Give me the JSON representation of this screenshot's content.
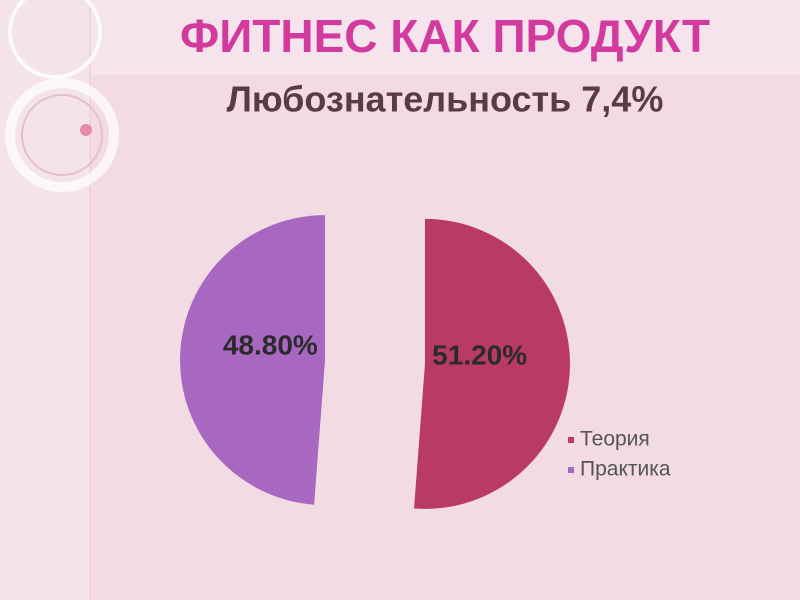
{
  "header": {
    "title": "ФИТНЕС КАК ПРОДУКТ"
  },
  "chart_data": {
    "type": "pie",
    "title": "Любознательность 7,4%",
    "categories": [
      "Теория",
      "Практика"
    ],
    "values": [
      51.2,
      48.8
    ],
    "value_labels": [
      "51.20%",
      "48.80%"
    ],
    "colors": [
      "#b93a66",
      "#a867c0"
    ],
    "legend": "right"
  }
}
